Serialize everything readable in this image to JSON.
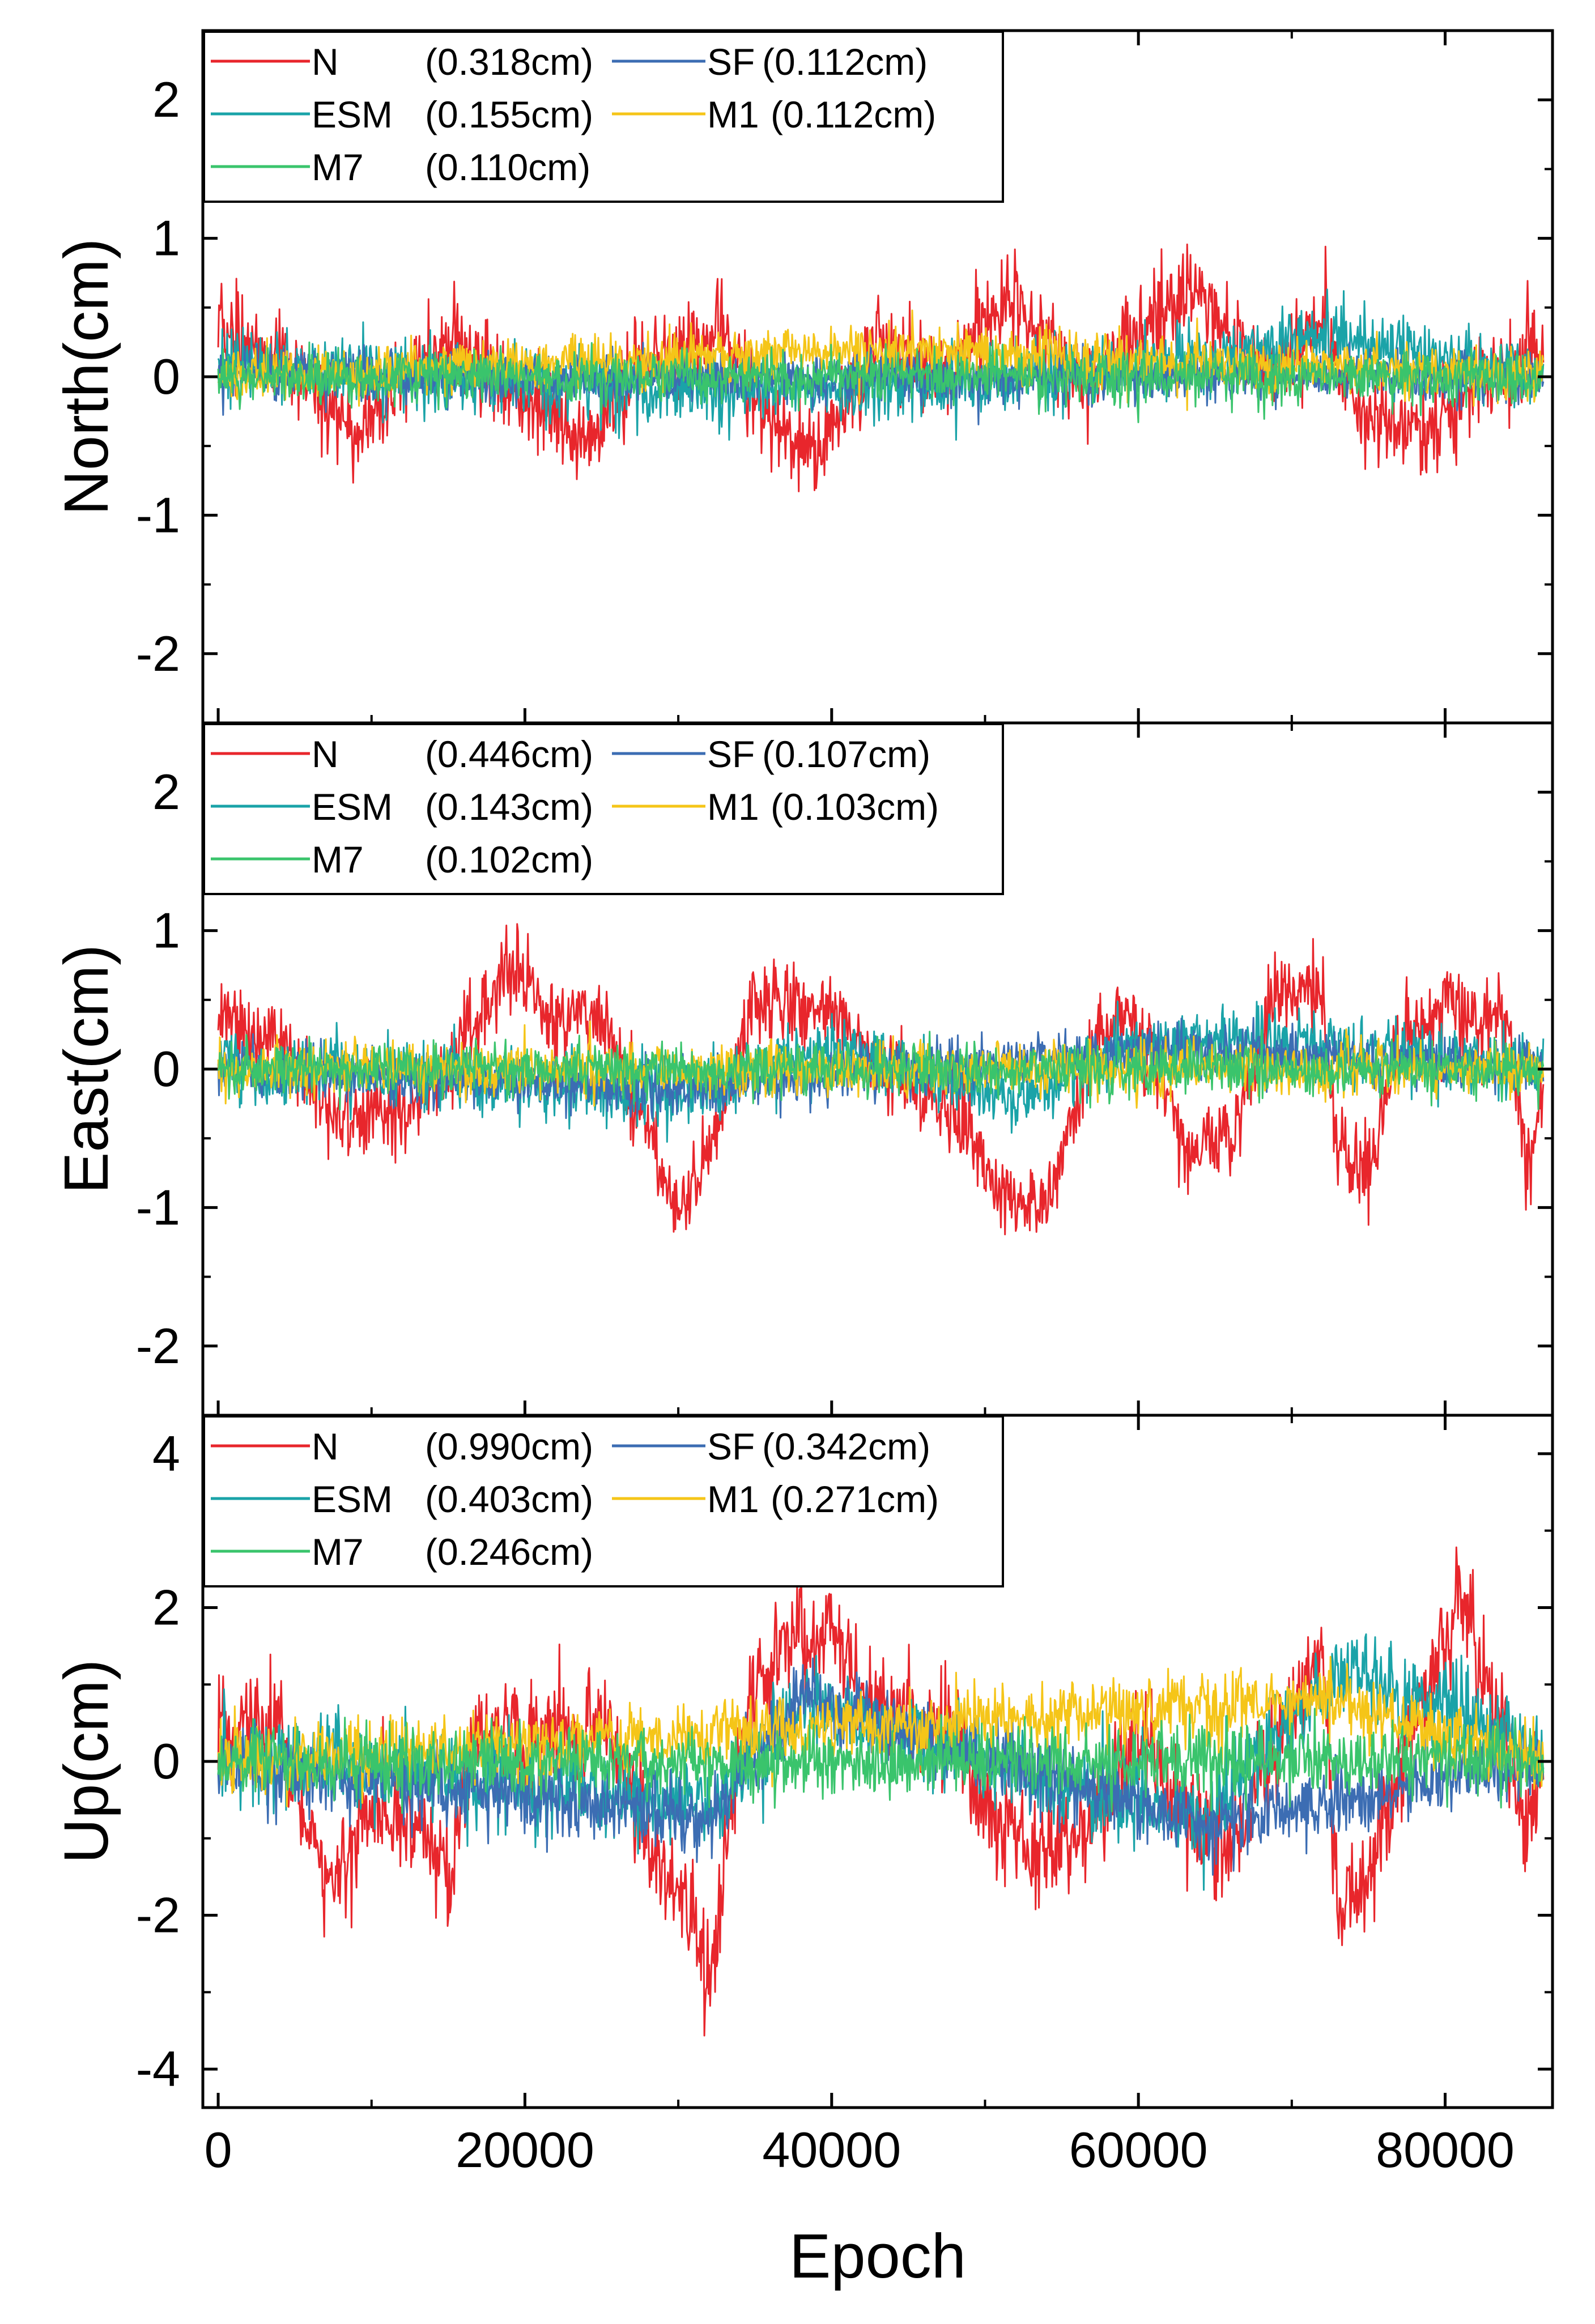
{
  "chart_data": [
    {
      "type": "line",
      "panel": "top",
      "ylabel": "North(cm)",
      "xlabel": "",
      "xlim": [
        -1000,
        87000
      ],
      "ylim": [
        -2.5,
        2.5
      ],
      "yticks": [
        -2,
        -1,
        0,
        1,
        2
      ],
      "yticklabels": [
        "-2",
        "-1",
        "0",
        "1",
        "2"
      ],
      "xticks": [
        0,
        20000,
        40000,
        60000,
        80000
      ],
      "xticklabels": [],
      "x_range": [
        0,
        86400
      ],
      "series": [
        {
          "name": "N",
          "label": "N",
          "rms": "(0.318cm)",
          "color": "#e8262c",
          "noise": 0.16,
          "drift_knots": [
            [
              0,
              0.35
            ],
            [
              5000,
              0.05
            ],
            [
              9000,
              -0.45
            ],
            [
              13000,
              0.1
            ],
            [
              16000,
              0.25
            ],
            [
              19000,
              -0.1
            ],
            [
              24000,
              -0.45
            ],
            [
              28000,
              0.1
            ],
            [
              33000,
              0.35
            ],
            [
              36000,
              -0.3
            ],
            [
              39000,
              -0.6
            ],
            [
              43000,
              0.3
            ],
            [
              47000,
              0.05
            ],
            [
              52000,
              0.55
            ],
            [
              56000,
              -0.05
            ],
            [
              60000,
              0.3
            ],
            [
              64000,
              0.6
            ],
            [
              68000,
              0.05
            ],
            [
              72000,
              0.35
            ],
            [
              75000,
              -0.3
            ],
            [
              79000,
              -0.4
            ],
            [
              83000,
              0.05
            ],
            [
              86400,
              0.2
            ]
          ]
        },
        {
          "name": "ESM",
          "label": "ESM",
          "rms": "(0.155cm)",
          "color": "#1aa3a8",
          "noise": 0.12,
          "drift_knots": [
            [
              0,
              0.1
            ],
            [
              20000,
              -0.05
            ],
            [
              40000,
              -0.1
            ],
            [
              60000,
              0.05
            ],
            [
              73000,
              0.3
            ],
            [
              86400,
              0
            ]
          ]
        },
        {
          "name": "M7",
          "label": "M7",
          "rms": "(0.110cm)",
          "color": "#3ac46c",
          "noise": 0.09,
          "drift_knots": [
            [
              0,
              0
            ],
            [
              86400,
              0
            ]
          ]
        },
        {
          "name": "SF",
          "label": "SF",
          "rms": "(0.112cm)",
          "color": "#3c6db3",
          "noise": 0.09,
          "drift_knots": [
            [
              0,
              0
            ],
            [
              86400,
              0
            ]
          ]
        },
        {
          "name": "M1",
          "label": "M1",
          "rms": "(0.112cm)",
          "color": "#f5c518",
          "noise": 0.09,
          "drift_knots": [
            [
              0,
              0
            ],
            [
              42000,
              0.2
            ],
            [
              86400,
              0
            ]
          ]
        }
      ]
    },
    {
      "type": "line",
      "panel": "middle",
      "ylabel": "East(cm)",
      "xlabel": "",
      "xlim": [
        -1000,
        87000
      ],
      "ylim": [
        -2.5,
        2.5
      ],
      "yticks": [
        -2,
        -1,
        0,
        1,
        2
      ],
      "yticklabels": [
        "-2",
        "-1",
        "0",
        "1",
        "2"
      ],
      "xticks": [
        0,
        20000,
        40000,
        60000,
        80000
      ],
      "xticklabels": [],
      "x_range": [
        0,
        86400
      ],
      "series": [
        {
          "name": "N",
          "label": "N",
          "rms": "(0.446cm)",
          "color": "#e8262c",
          "noise": 0.15,
          "drift_knots": [
            [
              0,
              0.35
            ],
            [
              4000,
              0.2
            ],
            [
              8000,
              -0.4
            ],
            [
              13000,
              -0.3
            ],
            [
              16000,
              0.2
            ],
            [
              19000,
              0.8
            ],
            [
              22000,
              0.3
            ],
            [
              25000,
              0.45
            ],
            [
              27000,
              -0.2
            ],
            [
              30000,
              -1.0
            ],
            [
              32000,
              -0.6
            ],
            [
              35000,
              0.5
            ],
            [
              40000,
              0.45
            ],
            [
              44000,
              -0.1
            ],
            [
              48000,
              -0.3
            ],
            [
              51000,
              -0.9
            ],
            [
              54000,
              -1.0
            ],
            [
              57000,
              0.1
            ],
            [
              59000,
              0.45
            ],
            [
              61000,
              0.1
            ],
            [
              63000,
              -0.6
            ],
            [
              66000,
              -0.5
            ],
            [
              69000,
              0.55
            ],
            [
              72000,
              0.6
            ],
            [
              73000,
              -0.6
            ],
            [
              75000,
              -0.8
            ],
            [
              77000,
              0.2
            ],
            [
              80000,
              0.5
            ],
            [
              84000,
              0.3
            ],
            [
              85500,
              -0.8
            ],
            [
              86400,
              -0.2
            ]
          ]
        },
        {
          "name": "ESM",
          "label": "ESM",
          "rms": "(0.143cm)",
          "color": "#1aa3a8",
          "noise": 0.12,
          "drift_knots": [
            [
              0,
              0.05
            ],
            [
              30000,
              -0.2
            ],
            [
              40000,
              0.15
            ],
            [
              52000,
              -0.2
            ],
            [
              60000,
              0.2
            ],
            [
              72000,
              0.15
            ],
            [
              86400,
              0
            ]
          ]
        },
        {
          "name": "M7",
          "label": "M7",
          "rms": "(0.102cm)",
          "color": "#3ac46c",
          "noise": 0.09,
          "drift_knots": [
            [
              0,
              0
            ],
            [
              86400,
              0
            ]
          ]
        },
        {
          "name": "SF",
          "label": "SF",
          "rms": "(0.107cm)",
          "color": "#3c6db3",
          "noise": 0.09,
          "drift_knots": [
            [
              0,
              0
            ],
            [
              30000,
              -0.15
            ],
            [
              60000,
              0.15
            ],
            [
              86400,
              0
            ]
          ]
        },
        {
          "name": "M1",
          "label": "M1",
          "rms": "(0.103cm)",
          "color": "#f5c518",
          "noise": 0.09,
          "drift_knots": [
            [
              0,
              0
            ],
            [
              86400,
              0
            ]
          ]
        }
      ]
    },
    {
      "type": "line",
      "panel": "bottom",
      "ylabel": "Up(cm)",
      "xlabel": "Epoch",
      "xlim": [
        -1000,
        87000
      ],
      "ylim": [
        -4.5,
        4.5
      ],
      "yticks": [
        -4,
        -2,
        0,
        2,
        4
      ],
      "yticklabels": [
        "-4",
        "-2",
        "0",
        "2",
        "4"
      ],
      "xticks": [
        0,
        20000,
        40000,
        60000,
        80000
      ],
      "xticklabels": [
        "0",
        "20000",
        "40000",
        "60000",
        "80000"
      ],
      "x_range": [
        0,
        86400
      ],
      "series": [
        {
          "name": "N",
          "label": "N",
          "rms": "(0.990cm)",
          "color": "#e8262c",
          "noise": 0.35,
          "drift_knots": [
            [
              0,
              0.5
            ],
            [
              4000,
              0.4
            ],
            [
              7000,
              -1.6
            ],
            [
              10000,
              -0.6
            ],
            [
              13000,
              -0.8
            ],
            [
              15000,
              -1.5
            ],
            [
              17000,
              0.5
            ],
            [
              21000,
              0.3
            ],
            [
              25000,
              0.5
            ],
            [
              28000,
              -1.0
            ],
            [
              31000,
              -2.2
            ],
            [
              32000,
              -3.0
            ],
            [
              34000,
              0.3
            ],
            [
              37000,
              1.5
            ],
            [
              40000,
              1.8
            ],
            [
              42000,
              0.8
            ],
            [
              45000,
              0.6
            ],
            [
              48000,
              0.4
            ],
            [
              50000,
              -0.6
            ],
            [
              54000,
              -1.3
            ],
            [
              57000,
              -0.8
            ],
            [
              60000,
              0.4
            ],
            [
              63000,
              -0.6
            ],
            [
              66000,
              -1.2
            ],
            [
              69000,
              0.2
            ],
            [
              72000,
              1.5
            ],
            [
              73000,
              -2.0
            ],
            [
              75000,
              -1.4
            ],
            [
              78000,
              0.5
            ],
            [
              81000,
              2.2
            ],
            [
              83000,
              0.8
            ],
            [
              85500,
              -0.8
            ],
            [
              86400,
              0
            ]
          ]
        },
        {
          "name": "ESM",
          "label": "ESM",
          "rms": "(0.403cm)",
          "color": "#1aa3a8",
          "noise": 0.28,
          "drift_knots": [
            [
              0,
              0.1
            ],
            [
              32000,
              -0.6
            ],
            [
              38000,
              0.8
            ],
            [
              50000,
              0
            ],
            [
              64000,
              -0.8
            ],
            [
              73000,
              1.2
            ],
            [
              82000,
              0.6
            ],
            [
              86400,
              0
            ]
          ]
        },
        {
          "name": "M7",
          "label": "M7",
          "rms": "(0.246cm)",
          "color": "#3ac46c",
          "noise": 0.22,
          "drift_knots": [
            [
              0,
              0
            ],
            [
              86400,
              0
            ]
          ]
        },
        {
          "name": "SF",
          "label": "SF",
          "rms": "(0.342cm)",
          "color": "#3c6db3",
          "noise": 0.24,
          "drift_knots": [
            [
              0,
              0
            ],
            [
              32000,
              -0.7
            ],
            [
              38000,
              0.8
            ],
            [
              64000,
              -0.8
            ],
            [
              86400,
              0
            ]
          ]
        },
        {
          "name": "M1",
          "label": "M1",
          "rms": "(0.271cm)",
          "color": "#f5c518",
          "noise": 0.22,
          "drift_knots": [
            [
              0,
              0
            ],
            [
              73000,
              0.8
            ],
            [
              86400,
              0
            ]
          ]
        }
      ]
    }
  ]
}
